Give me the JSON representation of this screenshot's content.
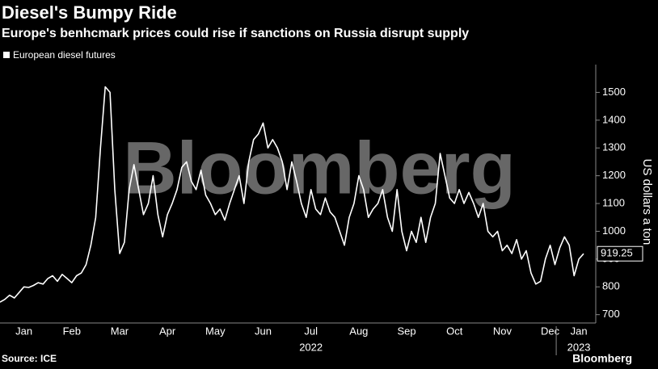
{
  "chart_data": {
    "type": "line",
    "title": "Diesel's Bumpy Ride",
    "subtitle": "Europe's benhcmark prices could rise if sanctions on Russia disrupt supply",
    "y_axis_label": "US dollars a ton",
    "source": "Source: ICE",
    "brand": "Bloomberg",
    "watermark": "Bloomberg",
    "annotations": [
      "2022",
      "2023"
    ],
    "categories": [
      null,
      null,
      null,
      null,
      null,
      "Jan",
      null,
      null,
      null,
      null,
      null,
      null,
      null,
      null,
      null,
      "Feb",
      null,
      null,
      null,
      null,
      null,
      null,
      null,
      null,
      null,
      "Mar",
      null,
      null,
      null,
      null,
      null,
      null,
      null,
      null,
      null,
      "Apr",
      null,
      null,
      null,
      null,
      null,
      null,
      null,
      null,
      null,
      "May",
      null,
      null,
      null,
      null,
      null,
      null,
      null,
      null,
      null,
      "Jun",
      null,
      null,
      null,
      null,
      null,
      null,
      null,
      null,
      null,
      "Jul",
      null,
      null,
      null,
      null,
      null,
      null,
      null,
      null,
      null,
      "Aug",
      null,
      null,
      null,
      null,
      null,
      null,
      null,
      null,
      null,
      "Sep",
      null,
      null,
      null,
      null,
      null,
      null,
      null,
      null,
      null,
      "Oct",
      null,
      null,
      null,
      null,
      null,
      null,
      null,
      null,
      null,
      "Nov",
      null,
      null,
      null,
      null,
      null,
      null,
      null,
      null,
      null,
      "Dec",
      null,
      null,
      null,
      null,
      null,
      "Jan",
      null
    ],
    "series": [
      {
        "name": "European diesel futures",
        "color": "#ffffff",
        "values": [
          745,
          755,
          770,
          760,
          780,
          800,
          798,
          805,
          815,
          810,
          830,
          840,
          820,
          845,
          830,
          815,
          840,
          850,
          880,
          950,
          1050,
          1300,
          1520,
          1500,
          1150,
          920,
          960,
          1150,
          1240,
          1150,
          1060,
          1100,
          1200,
          1060,
          980,
          1060,
          1100,
          1150,
          1230,
          1250,
          1180,
          1150,
          1220,
          1130,
          1100,
          1060,
          1080,
          1040,
          1100,
          1150,
          1200,
          1100,
          1250,
          1330,
          1350,
          1390,
          1300,
          1330,
          1300,
          1250,
          1150,
          1250,
          1180,
          1100,
          1050,
          1150,
          1080,
          1060,
          1120,
          1070,
          1050,
          1000,
          950,
          1050,
          1100,
          1200,
          1150,
          1050,
          1080,
          1100,
          1150,
          1050,
          1000,
          1150,
          1000,
          930,
          1000,
          960,
          1050,
          960,
          1050,
          1100,
          1280,
          1200,
          1120,
          1100,
          1150,
          1100,
          1140,
          1100,
          1050,
          1100,
          1000,
          980,
          1000,
          930,
          950,
          920,
          970,
          900,
          930,
          850,
          810,
          820,
          900,
          950,
          880,
          940,
          980,
          950,
          840,
          900,
          919.25
        ]
      }
    ],
    "ylim": [
      670,
      1600
    ],
    "yticks": [
      700,
      800,
      900,
      1000,
      1100,
      1200,
      1300,
      1400,
      1500
    ],
    "grid": false,
    "legend": "top-left"
  }
}
